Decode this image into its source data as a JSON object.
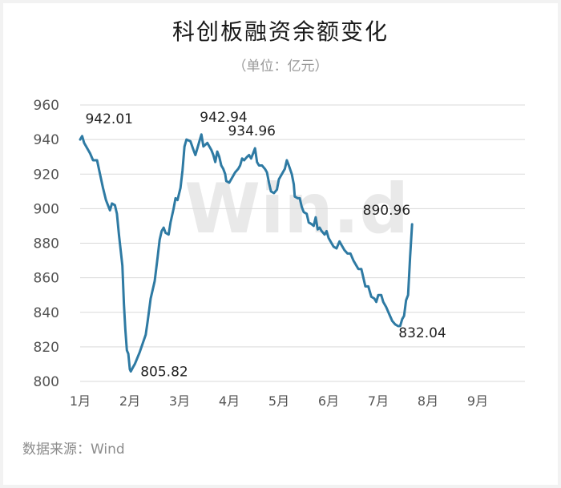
{
  "chart_data": {
    "type": "line",
    "title": "科创板融资余额变化",
    "subtitle": "（单位：亿元）",
    "source": "数据来源：Wind",
    "watermark": "Win.d",
    "ylim": [
      800,
      960
    ],
    "yticks": [
      "800",
      "820",
      "840",
      "860",
      "880",
      "900",
      "920",
      "940",
      "960"
    ],
    "xticks": [
      "1月",
      "2月",
      "3月",
      "4月",
      "5月",
      "6月",
      "7月",
      "8月",
      "9月"
    ],
    "grid": "horizontal",
    "line_color": "#2e7aa3",
    "series": [
      {
        "points": [
          [
            0.0,
            940
          ],
          [
            0.04,
            942.01
          ],
          [
            0.08,
            938
          ],
          [
            0.14,
            935
          ],
          [
            0.2,
            932
          ],
          [
            0.26,
            928
          ],
          [
            0.34,
            928
          ],
          [
            0.4,
            920
          ],
          [
            0.46,
            912
          ],
          [
            0.52,
            905
          ],
          [
            0.56,
            902
          ],
          [
            0.6,
            899
          ],
          [
            0.64,
            903
          ],
          [
            0.7,
            902
          ],
          [
            0.74,
            897
          ],
          [
            0.78,
            885
          ],
          [
            0.82,
            875
          ],
          [
            0.85,
            867
          ],
          [
            0.88,
            845
          ],
          [
            0.91,
            830
          ],
          [
            0.94,
            818
          ],
          [
            0.97,
            816
          ],
          [
            1.0,
            807
          ],
          [
            1.02,
            805.82
          ],
          [
            1.06,
            808
          ],
          [
            1.1,
            810
          ],
          [
            1.2,
            817
          ],
          [
            1.32,
            827
          ],
          [
            1.36,
            835
          ],
          [
            1.42,
            848
          ],
          [
            1.5,
            858
          ],
          [
            1.56,
            872
          ],
          [
            1.6,
            882
          ],
          [
            1.64,
            887
          ],
          [
            1.68,
            889
          ],
          [
            1.72,
            886
          ],
          [
            1.78,
            885
          ],
          [
            1.82,
            892
          ],
          [
            1.88,
            900
          ],
          [
            1.92,
            906
          ],
          [
            1.96,
            905
          ],
          [
            2.02,
            912
          ],
          [
            2.06,
            922
          ],
          [
            2.1,
            936
          ],
          [
            2.14,
            940
          ],
          [
            2.22,
            939
          ],
          [
            2.28,
            934
          ],
          [
            2.32,
            931
          ],
          [
            2.36,
            935
          ],
          [
            2.4,
            939
          ],
          [
            2.44,
            942.94
          ],
          [
            2.48,
            936
          ],
          [
            2.52,
            937
          ],
          [
            2.56,
            938
          ],
          [
            2.6,
            936
          ],
          [
            2.64,
            934
          ],
          [
            2.68,
            931
          ],
          [
            2.72,
            927
          ],
          [
            2.76,
            933
          ],
          [
            2.8,
            930
          ],
          [
            2.84,
            925
          ],
          [
            2.88,
            923
          ],
          [
            2.92,
            920
          ],
          [
            2.94,
            916
          ],
          [
            3.0,
            915
          ],
          [
            3.06,
            918
          ],
          [
            3.12,
            921
          ],
          [
            3.18,
            923
          ],
          [
            3.22,
            925
          ],
          [
            3.26,
            929
          ],
          [
            3.3,
            928
          ],
          [
            3.36,
            930
          ],
          [
            3.4,
            931
          ],
          [
            3.44,
            929
          ],
          [
            3.48,
            932
          ],
          [
            3.52,
            934.96
          ],
          [
            3.56,
            927
          ],
          [
            3.6,
            925
          ],
          [
            3.66,
            925
          ],
          [
            3.72,
            923
          ],
          [
            3.76,
            921
          ],
          [
            3.8,
            915
          ],
          [
            3.84,
            910
          ],
          [
            3.9,
            909
          ],
          [
            3.96,
            911
          ],
          [
            4.0,
            917
          ],
          [
            4.06,
            920
          ],
          [
            4.12,
            923
          ],
          [
            4.16,
            928
          ],
          [
            4.2,
            925
          ],
          [
            4.26,
            920
          ],
          [
            4.3,
            914
          ],
          [
            4.32,
            907
          ],
          [
            4.38,
            906
          ],
          [
            4.42,
            906
          ],
          [
            4.46,
            901
          ],
          [
            4.5,
            898
          ],
          [
            4.56,
            897
          ],
          [
            4.6,
            892
          ],
          [
            4.66,
            891
          ],
          [
            4.7,
            890
          ],
          [
            4.74,
            895
          ],
          [
            4.78,
            888
          ],
          [
            4.82,
            889
          ],
          [
            4.86,
            887
          ],
          [
            4.92,
            885
          ],
          [
            4.96,
            887
          ],
          [
            5.0,
            883
          ],
          [
            5.06,
            880
          ],
          [
            5.1,
            878
          ],
          [
            5.16,
            877
          ],
          [
            5.22,
            881
          ],
          [
            5.26,
            879
          ],
          [
            5.32,
            876
          ],
          [
            5.38,
            874
          ],
          [
            5.44,
            874
          ],
          [
            5.5,
            870
          ],
          [
            5.56,
            867
          ],
          [
            5.6,
            865
          ],
          [
            5.66,
            865
          ],
          [
            5.7,
            860
          ],
          [
            5.74,
            855
          ],
          [
            5.8,
            855
          ],
          [
            5.86,
            849
          ],
          [
            5.92,
            848
          ],
          [
            5.96,
            846
          ],
          [
            6.0,
            850
          ],
          [
            6.06,
            850
          ],
          [
            6.1,
            846
          ],
          [
            6.16,
            843
          ],
          [
            6.22,
            839
          ],
          [
            6.28,
            835
          ],
          [
            6.34,
            833
          ],
          [
            6.4,
            832
          ],
          [
            6.44,
            832.04
          ],
          [
            6.48,
            836
          ],
          [
            6.52,
            838
          ],
          [
            6.56,
            847
          ],
          [
            6.6,
            850
          ],
          [
            6.64,
            872
          ],
          [
            6.68,
            890.96
          ]
        ]
      }
    ],
    "annotations": [
      {
        "text": "942.01",
        "x": 0.04,
        "y": 942.01
      },
      {
        "text": "805.82",
        "x": 1.02,
        "y": 805.82
      },
      {
        "text": "942.94",
        "x": 2.44,
        "y": 942.94
      },
      {
        "text": "934.96",
        "x": 3.52,
        "y": 934.96
      },
      {
        "text": "890.96",
        "x": 6.68,
        "y": 890.96
      },
      {
        "text": "832.04",
        "x": 6.44,
        "y": 832.04
      }
    ]
  }
}
